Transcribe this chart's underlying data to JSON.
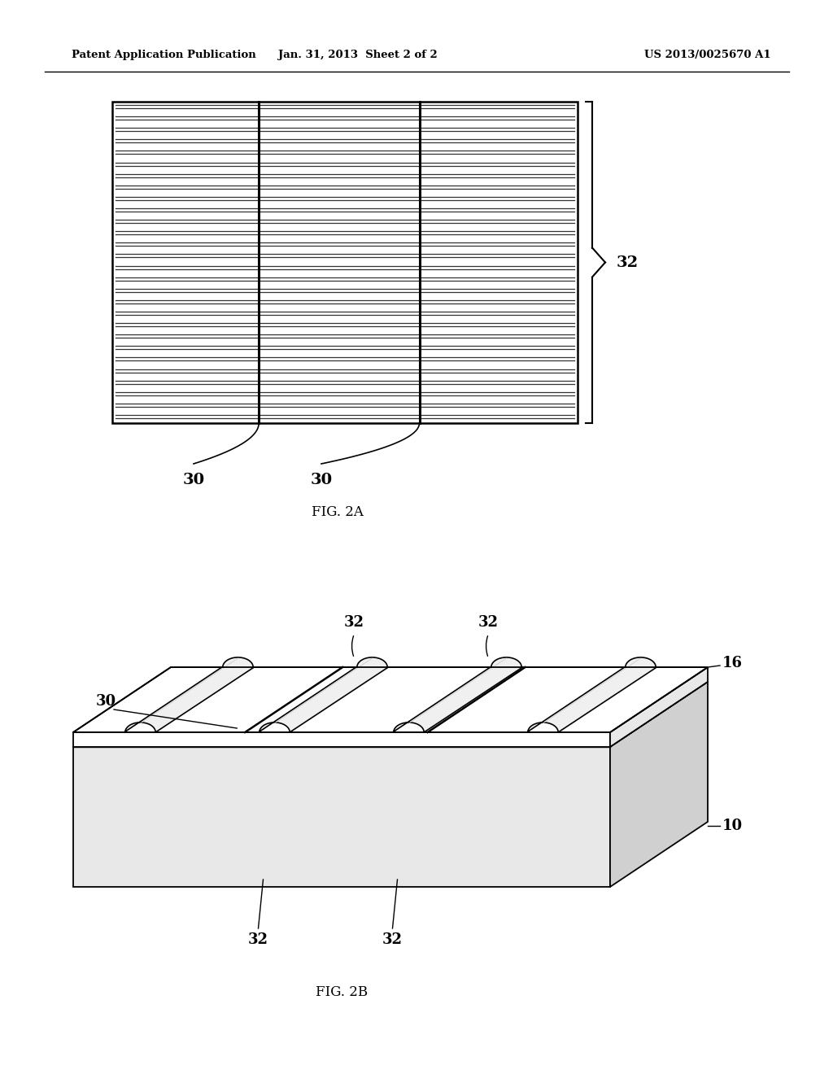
{
  "bg_color": "#ffffff",
  "header_left": "Patent Application Publication",
  "header_mid": "Jan. 31, 2013  Sheet 2 of 2",
  "header_right": "US 2013/0025670 A1",
  "fig2a_label": "FIG. 2A",
  "fig2b_label": "FIG. 2B",
  "line_color": "#000000",
  "gray_light": "#e8e8e8",
  "gray_mid": "#d0d0d0",
  "gray_dark": "#b8b8b8"
}
